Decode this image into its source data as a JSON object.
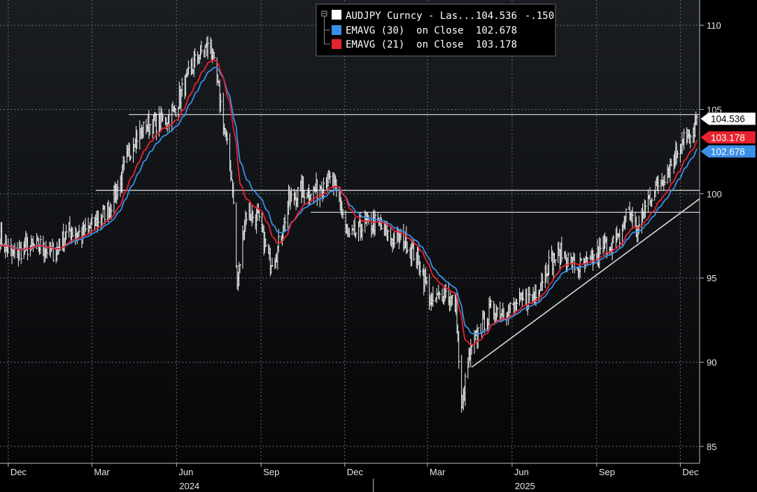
{
  "chart_data": {
    "type": "line",
    "ticker": "AUDJPY Curncy - Las...",
    "last_price": 104.536,
    "last_price_label": "104.536",
    "change_label": "-.150",
    "y_ticks": [
      85,
      90,
      95,
      100,
      105,
      110
    ],
    "ylim": [
      84,
      111.5
    ],
    "x_ticks": [
      {
        "label": "Dec",
        "date": "2023-12-01"
      },
      {
        "label": "Mar",
        "date": "2024-03-01"
      },
      {
        "label": "Jun",
        "date": "2024-06-01"
      },
      {
        "label": "Sep",
        "date": "2024-09-01"
      },
      {
        "label": "Dec",
        "date": "2024-12-01"
      },
      {
        "label": "Mar",
        "date": "2025-03-01"
      },
      {
        "label": "Jun",
        "date": "2025-06-01"
      },
      {
        "label": "Sep",
        "date": "2025-09-01"
      },
      {
        "label": "Dec",
        "date": "2025-12-01"
      }
    ],
    "years": [
      {
        "label": "2024",
        "date": "2024-06-15"
      },
      {
        "label": "2025",
        "date": "2025-06-15"
      }
    ],
    "xlim": [
      "2023-11-22",
      "2025-12-22"
    ],
    "price_points": [
      [
        "2023-11-22",
        97.4
      ],
      [
        "2023-12-05",
        96.3
      ],
      [
        "2023-12-20",
        96.8
      ],
      [
        "2024-01-05",
        96.9
      ],
      [
        "2024-01-20",
        96.5
      ],
      [
        "2024-02-05",
        97.8
      ],
      [
        "2024-02-20",
        97.6
      ],
      [
        "2024-03-05",
        98.3
      ],
      [
        "2024-03-20",
        99.2
      ],
      [
        "2024-04-01",
        100.8
      ],
      [
        "2024-04-15",
        103.2
      ],
      [
        "2024-05-01",
        104.1
      ],
      [
        "2024-05-15",
        104.3
      ],
      [
        "2024-05-28",
        104.7
      ],
      [
        "2024-06-10",
        106.5
      ],
      [
        "2024-06-25",
        108.3
      ],
      [
        "2024-07-08",
        108.8
      ],
      [
        "2024-07-20",
        105.0
      ],
      [
        "2024-08-01",
        100.5
      ],
      [
        "2024-08-06",
        94.5
      ],
      [
        "2024-08-15",
        98.8
      ],
      [
        "2024-08-28",
        98.6
      ],
      [
        "2024-09-10",
        96.0
      ],
      [
        "2024-09-18",
        96.5
      ],
      [
        "2024-10-01",
        99.5
      ],
      [
        "2024-10-15",
        100.2
      ],
      [
        "2024-11-01",
        100.2
      ],
      [
        "2024-11-12",
        101.0
      ],
      [
        "2024-11-25",
        99.8
      ],
      [
        "2024-12-05",
        97.3
      ],
      [
        "2024-12-20",
        98.0
      ],
      [
        "2025-01-05",
        98.3
      ],
      [
        "2025-01-20",
        97.4
      ],
      [
        "2025-02-05",
        97.2
      ],
      [
        "2025-02-20",
        96.0
      ],
      [
        "2025-03-05",
        93.5
      ],
      [
        "2025-03-20",
        94.2
      ],
      [
        "2025-04-01",
        93.3
      ],
      [
        "2025-04-07",
        87.0
      ],
      [
        "2025-04-14",
        90.0
      ],
      [
        "2025-04-25",
        91.8
      ],
      [
        "2025-05-10",
        93.2
      ],
      [
        "2025-05-25",
        93.0
      ],
      [
        "2025-06-10",
        93.5
      ],
      [
        "2025-06-25",
        94.0
      ],
      [
        "2025-07-10",
        95.8
      ],
      [
        "2025-07-25",
        96.5
      ],
      [
        "2025-08-10",
        95.6
      ],
      [
        "2025-08-25",
        95.9
      ],
      [
        "2025-09-10",
        96.9
      ],
      [
        "2025-09-25",
        97.2
      ],
      [
        "2025-10-05",
        99.2
      ],
      [
        "2025-10-15",
        97.8
      ],
      [
        "2025-10-28",
        99.8
      ],
      [
        "2025-11-10",
        100.8
      ],
      [
        "2025-11-25",
        102.2
      ],
      [
        "2025-12-05",
        103.5
      ],
      [
        "2025-12-12",
        103.0
      ],
      [
        "2025-12-19",
        104.536
      ]
    ],
    "series": [
      {
        "name": "AUDJPY Curncy - Las...",
        "label": "104.536",
        "extra": "-.150",
        "color": "#ffffff"
      },
      {
        "name": "EMAVG (30)  on Close",
        "label": "102.678",
        "value": 102.678,
        "period": 30,
        "color": "#3a8fe8"
      },
      {
        "name": "EMAVG (21)  on Close",
        "label": "103.178",
        "value": 103.178,
        "period": 21,
        "color": "#e8232f"
      }
    ],
    "horizontal_lines": [
      {
        "value": 104.7,
        "from": "2024-04-10",
        "to": "2025-12-22"
      },
      {
        "value": 100.2,
        "from": "2024-03-05",
        "to": "2025-12-22"
      },
      {
        "value": 98.9,
        "from": "2024-10-25",
        "to": "2025-12-22"
      }
    ],
    "trend_line": {
      "from": [
        "2025-04-18",
        89.7
      ],
      "to": [
        "2025-12-22",
        99.7
      ]
    },
    "grid": true,
    "legend_position": "top-center"
  }
}
